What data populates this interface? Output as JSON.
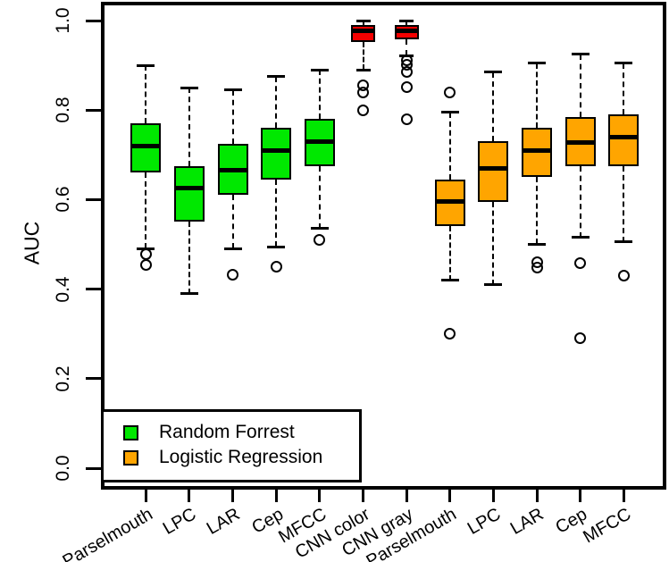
{
  "figure": {
    "background": "#ffffff"
  },
  "chart_data": {
    "type": "boxplot",
    "title": "",
    "xlabel": "",
    "ylabel": "AUC",
    "ylim": [
      0.0,
      1.0
    ],
    "yticks": [
      "0.0",
      "0.2",
      "0.4",
      "0.6",
      "0.8",
      "1.0"
    ],
    "grid": false,
    "whisker_style": "dashed",
    "legend": {
      "position": "bottom-left",
      "entries": [
        {
          "label": "Random Forrest",
          "color": "#00e800"
        },
        {
          "label": "Logistic Regression",
          "color": "#ffa500"
        }
      ]
    },
    "categories": [
      "Parselmouth",
      "LPC",
      "LAR",
      "Cep",
      "MFCC",
      "CNN color",
      "CNN gray",
      "Parselmouth",
      "LPC",
      "LAR",
      "Cep",
      "MFCC"
    ],
    "boxes": [
      {
        "label": "Parselmouth",
        "group": "Random Forrest",
        "color": "#00e800",
        "width_scale": 1.0,
        "whislo": 0.49,
        "q1": 0.66,
        "med": 0.72,
        "q3": 0.77,
        "whishi": 0.9,
        "outliers": [
          0.478,
          0.455
        ]
      },
      {
        "label": "LPC",
        "group": "Random Forrest",
        "color": "#00e800",
        "width_scale": 1.0,
        "whislo": 0.39,
        "q1": 0.55,
        "med": 0.625,
        "q3": 0.675,
        "whishi": 0.85,
        "outliers": []
      },
      {
        "label": "LAR",
        "group": "Random Forrest",
        "color": "#00e800",
        "width_scale": 1.0,
        "whislo": 0.49,
        "q1": 0.61,
        "med": 0.665,
        "q3": 0.725,
        "whishi": 0.845,
        "outliers": [
          0.433
        ]
      },
      {
        "label": "Cep",
        "group": "Random Forrest",
        "color": "#00e800",
        "width_scale": 1.0,
        "whislo": 0.495,
        "q1": 0.645,
        "med": 0.71,
        "q3": 0.76,
        "whishi": 0.875,
        "outliers": [
          0.45
        ]
      },
      {
        "label": "MFCC",
        "group": "Random Forrest",
        "color": "#00e800",
        "width_scale": 1.0,
        "whislo": 0.535,
        "q1": 0.675,
        "med": 0.73,
        "q3": 0.78,
        "whishi": 0.89,
        "outliers": [
          0.51
        ]
      },
      {
        "label": "CNN color",
        "group": "CNN",
        "color": "#f50000",
        "width_scale": 0.78,
        "whislo": 0.89,
        "q1": 0.952,
        "med": 0.978,
        "q3": 0.99,
        "whishi": 1.0,
        "outliers": [
          0.856,
          0.84,
          0.8
        ]
      },
      {
        "label": "CNN gray",
        "group": "CNN",
        "color": "#f50000",
        "width_scale": 0.78,
        "whislo": 0.922,
        "q1": 0.958,
        "med": 0.978,
        "q3": 0.99,
        "whishi": 1.0,
        "outliers": [
          0.912,
          0.902,
          0.885,
          0.852,
          0.78
        ]
      },
      {
        "label": "Parselmouth",
        "group": "Logistic Regression",
        "color": "#ffa500",
        "width_scale": 1.0,
        "whislo": 0.42,
        "q1": 0.54,
        "med": 0.595,
        "q3": 0.645,
        "whishi": 0.795,
        "outliers": [
          0.84,
          0.3
        ]
      },
      {
        "label": "LPC",
        "group": "Logistic Regression",
        "color": "#ffa500",
        "width_scale": 1.0,
        "whislo": 0.41,
        "q1": 0.595,
        "med": 0.67,
        "q3": 0.73,
        "whishi": 0.885,
        "outliers": []
      },
      {
        "label": "LAR",
        "group": "Logistic Regression",
        "color": "#ffa500",
        "width_scale": 1.0,
        "whislo": 0.5,
        "q1": 0.65,
        "med": 0.71,
        "q3": 0.76,
        "whishi": 0.905,
        "outliers": [
          0.46,
          0.448
        ]
      },
      {
        "label": "Cep",
        "group": "Logistic Regression",
        "color": "#ffa500",
        "width_scale": 1.0,
        "whislo": 0.515,
        "q1": 0.675,
        "med": 0.728,
        "q3": 0.785,
        "whishi": 0.925,
        "outliers": [
          0.458,
          0.29
        ]
      },
      {
        "label": "MFCC",
        "group": "Logistic Regression",
        "color": "#ffa500",
        "width_scale": 1.0,
        "whislo": 0.505,
        "q1": 0.675,
        "med": 0.74,
        "q3": 0.79,
        "whishi": 0.905,
        "outliers": [
          0.43
        ]
      }
    ]
  }
}
